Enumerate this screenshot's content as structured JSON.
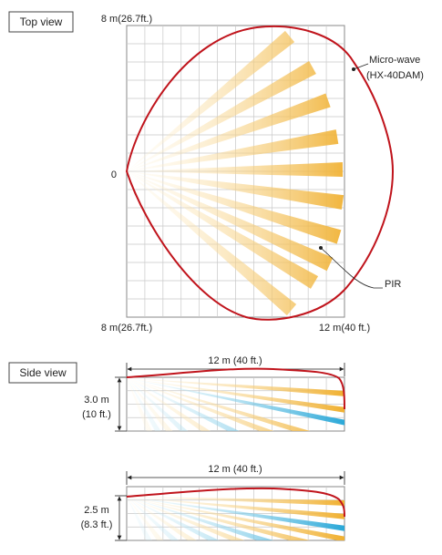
{
  "colors": {
    "grid": "#c8c8c8",
    "grid_border": "#8a8a8a",
    "microwave": "#c0141c",
    "pir_warm": "#f0b030",
    "pir_cool": "#2aa8d8",
    "text": "#222222"
  },
  "top_view": {
    "title": "Top view",
    "label_top": "8 m(26.7ft.)",
    "label_origin": "0",
    "label_bottom": "8 m(26.7ft.)",
    "label_range": "12 m(40 ft.)",
    "microwave_label_line1": "Micro-wave",
    "microwave_label_line2": "(HX-40DAM)",
    "pir_label": "PIR",
    "pir_beam_count": 12
  },
  "side_view_1": {
    "title": "Side view",
    "range_label": "12 m (40 ft.)",
    "height_label_line1": "3.0 m",
    "height_label_line2": "(10 ft.)"
  },
  "side_view_2": {
    "range_label": "12 m (40 ft.)",
    "height_label_line1": "2.5 m",
    "height_label_line2": "(8.3 ft.)"
  }
}
